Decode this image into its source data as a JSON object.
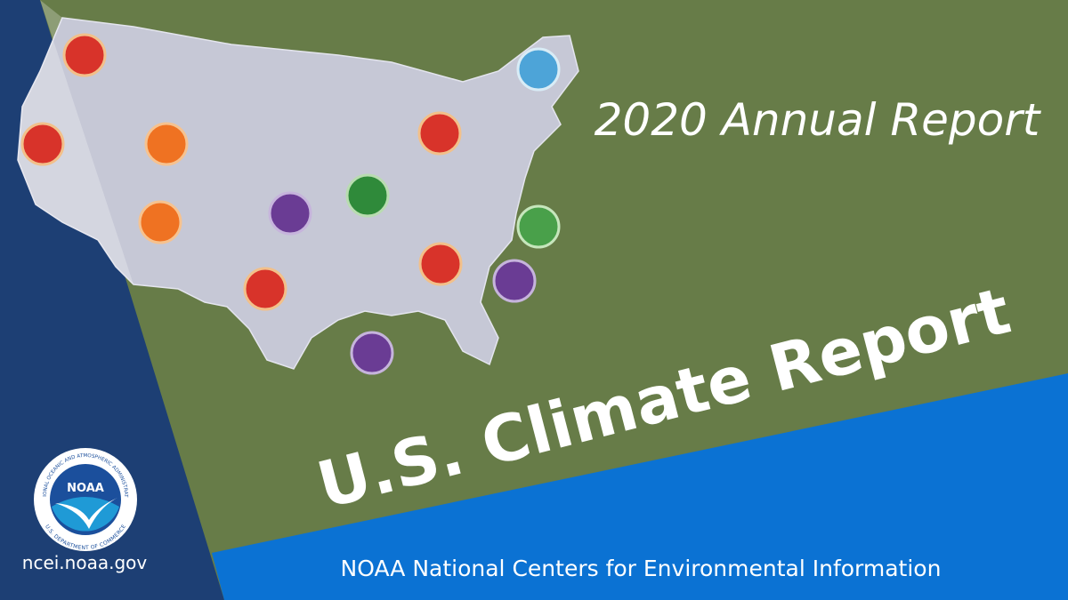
{
  "header": {
    "title": "2020 Annual Report",
    "headline": "U.S. Climate Report"
  },
  "footer": {
    "organization": "NOAA National Centers for Environmental Information",
    "website": "ncei.noaa.gov"
  },
  "logo": {
    "name": "NOAA",
    "top_ring": "NATIONAL OCEANIC AND ATMOSPHERIC ADMINISTRATION",
    "bottom_ring": "U.S. DEPARTMENT OF COMMERCE"
  }
}
